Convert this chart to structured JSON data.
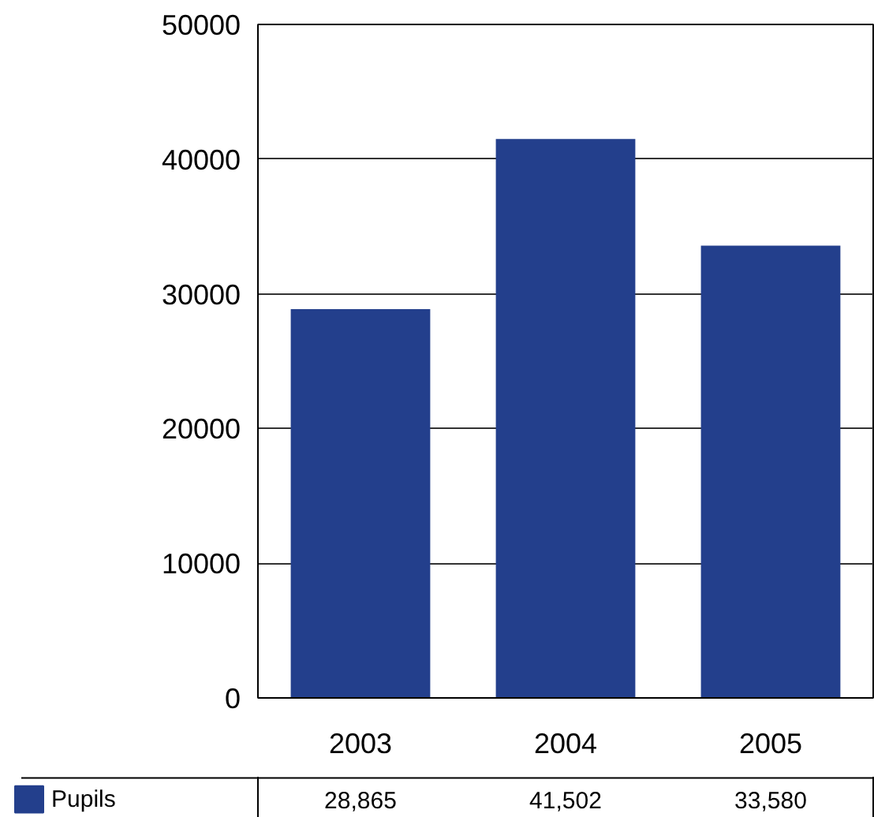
{
  "chart_data": {
    "type": "bar",
    "categories": [
      "2003",
      "2004",
      "2005"
    ],
    "series": [
      {
        "name": "Pupils",
        "color": "#233f8c",
        "values": [
          28865,
          41502,
          33580
        ],
        "value_labels": [
          "28,865",
          "41,502",
          "33,580"
        ]
      }
    ],
    "ylim": [
      0,
      50000
    ],
    "yticks": [
      0,
      10000,
      20000,
      30000,
      40000,
      50000
    ],
    "grid": "y",
    "legend": "bottom",
    "data_labels": true
  }
}
